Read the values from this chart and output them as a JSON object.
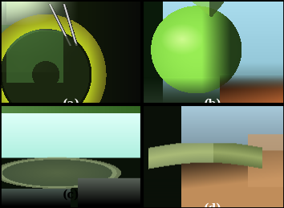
{
  "labels": [
    "(a)",
    "(b)",
    "(c)",
    "(d)"
  ],
  "label_color": "white",
  "label_fontsize": 10,
  "figsize": [
    3.54,
    2.59
  ],
  "dpi": 100,
  "panel_a": {
    "top_left_bright": "#e8ffd0",
    "top_left_sky": "#c0f0a0",
    "mid_green": "#60a040",
    "dark_bg": "#102010",
    "film_ring": "#c8d820",
    "right_dark": "#080808",
    "glare_white": "#ffffff"
  },
  "panel_b": {
    "sky_top": "#88ddee",
    "sky_right": "#88ccee",
    "dark_left": "#102010",
    "film_green": "#88ee44",
    "film_highlight": "#ccff88",
    "film_shadow": "#224422",
    "horizon": "#334433",
    "hand_red": "#aa4422",
    "hand_dark": "#884422"
  },
  "panel_c": {
    "sky_light": "#aaeedd",
    "sky_white": "#ddfff0",
    "dark_ground": "#081008",
    "film_dark": "#334433",
    "film_mid": "#446644",
    "structures": "#101810",
    "top_green": "#88cc66",
    "top_dark": "#223322"
  },
  "panel_d": {
    "sky_blue": "#88bbcc",
    "sky_top": "#aaccdd",
    "dark_mid": "#111811",
    "hand_skin": "#cc9966",
    "hand_dark": "#aa7744",
    "film_green": "#99bb77",
    "film_yellow": "#bbcc88",
    "fingers": "#ddaa88"
  }
}
